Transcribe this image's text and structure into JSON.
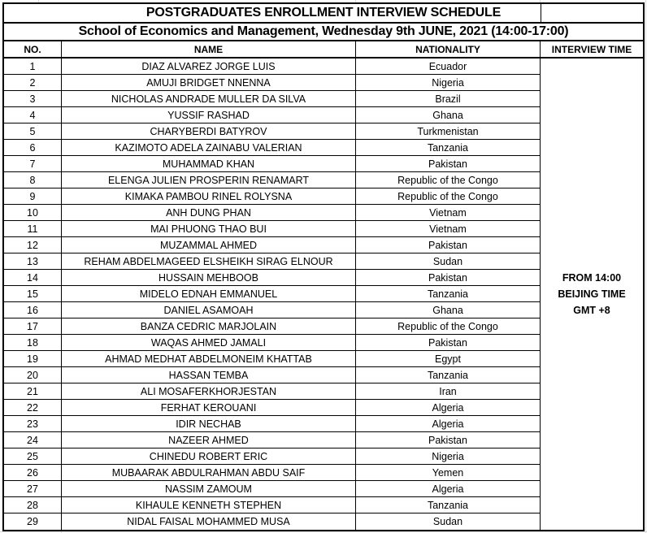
{
  "title": "POSTGRADUATES ENROLLMENT INTERVIEW SCHEDULE",
  "subtitle": "School of Economics and Management, Wednesday 9th JUNE, 2021 (14:00-17:00)",
  "columns": {
    "no": "NO.",
    "name": "NAME",
    "nationality": "NATIONALITY",
    "interview_time": "INTERVIEW TIME"
  },
  "interview_time": {
    "lines": [
      "FROM 14:00",
      "BEIJING TIME",
      "GMT +8"
    ]
  },
  "colors": {
    "table_border": "#000000",
    "text": "#000000",
    "background": "#ffffff",
    "outer_gridline": "#d8d8d8"
  },
  "rows": [
    {
      "no": "1",
      "name": "DIAZ ALVAREZ JORGE LUIS",
      "nationality": "Ecuador"
    },
    {
      "no": "2",
      "name": "AMUJI BRIDGET NNENNA",
      "nationality": "Nigeria"
    },
    {
      "no": "3",
      "name": "NICHOLAS ANDRADE MULLER DA SILVA",
      "nationality": "Brazil"
    },
    {
      "no": "4",
      "name": "YUSSIF RASHAD",
      "nationality": "Ghana"
    },
    {
      "no": "5",
      "name": "CHARYBERDI BATYROV",
      "nationality": "Turkmenistan"
    },
    {
      "no": "6",
      "name": "KAZIMOTO ADELA ZAINABU VALERIAN",
      "nationality": "Tanzania"
    },
    {
      "no": "7",
      "name": "MUHAMMAD KHAN",
      "nationality": "Pakistan"
    },
    {
      "no": "8",
      "name": "ELENGA JULIEN PROSPERIN RENAMART",
      "nationality": "Republic of the Congo"
    },
    {
      "no": "9",
      "name": "KIMAKA PAMBOU RINEL ROLYSNA",
      "nationality": "Republic of the Congo"
    },
    {
      "no": "10",
      "name": "ANH DUNG PHAN",
      "nationality": "Vietnam"
    },
    {
      "no": "11",
      "name": "MAI PHUONG THAO BUI",
      "nationality": "Vietnam"
    },
    {
      "no": "12",
      "name": "MUZAMMAL AHMED",
      "nationality": "Pakistan"
    },
    {
      "no": "13",
      "name": "REHAM ABDELMAGEED ELSHEIKH SIRAG ELNOUR",
      "nationality": "Sudan"
    },
    {
      "no": "14",
      "name": "HUSSAIN MEHBOOB",
      "nationality": "Pakistan"
    },
    {
      "no": "15",
      "name": "MIDELO EDNAH EMMANUEL",
      "nationality": "Tanzania"
    },
    {
      "no": "16",
      "name": "DANIEL ASAMOAH",
      "nationality": "Ghana"
    },
    {
      "no": "17",
      "name": "BANZA CEDRIC MARJOLAIN",
      "nationality": "Republic of the Congo"
    },
    {
      "no": "18",
      "name": "WAQAS AHMED JAMALI",
      "nationality": "Pakistan"
    },
    {
      "no": "19",
      "name": "AHMAD MEDHAT ABDELMONEIM KHATTAB",
      "nationality": "Egypt"
    },
    {
      "no": "20",
      "name": "HASSAN TEMBA",
      "nationality": "Tanzania"
    },
    {
      "no": "21",
      "name": "ALI MOSAFERKHORJESTAN",
      "nationality": "Iran"
    },
    {
      "no": "22",
      "name": "FERHAT KEROUANI",
      "nationality": "Algeria"
    },
    {
      "no": "23",
      "name": "IDIR NECHAB",
      "nationality": "Algeria"
    },
    {
      "no": "24",
      "name": "NAZEER AHMED",
      "nationality": "Pakistan"
    },
    {
      "no": "25",
      "name": "CHINEDU ROBERT ERIC",
      "nationality": "Nigeria"
    },
    {
      "no": "26",
      "name": "MUBAARAK ABDULRAHMAN ABDU SAIF",
      "nationality": "Yemen"
    },
    {
      "no": "27",
      "name": "NASSIM ZAMOUM",
      "nationality": "Algeria"
    },
    {
      "no": "28",
      "name": "KIHAULE KENNETH STEPHEN",
      "nationality": "Tanzania"
    },
    {
      "no": "29",
      "name": "NIDAL FAISAL MOHAMMED MUSA",
      "nationality": "Sudan"
    }
  ]
}
